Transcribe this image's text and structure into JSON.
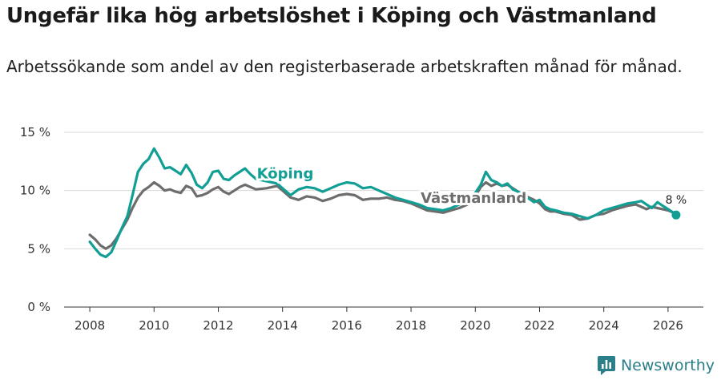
{
  "title": "Ungefär lika hög arbetslöshet i Köping och Västmanland",
  "subtitle": "Arbetssökande som andel av den registerbaserade arbetskraften månad för månad.",
  "brand": {
    "name": "Newsworthy",
    "icon": "newsworthy-logo-icon",
    "color": "#2a7f8a"
  },
  "chart_data": {
    "type": "line",
    "title": "Ungefär lika hög arbetslöshet i Köping och Västmanland",
    "xlabel": "",
    "ylabel": "",
    "xlim": [
      2007.2,
      2027.1
    ],
    "ylim": [
      0,
      15
    ],
    "y_ticks": [
      0,
      5,
      10,
      15
    ],
    "y_tick_labels": [
      "0 %",
      "5 %",
      "10 %",
      "15 %"
    ],
    "x_ticks": [
      2008,
      2010,
      2012,
      2014,
      2016,
      2018,
      2020,
      2022,
      2024,
      2026
    ],
    "x_tick_labels": [
      "2008",
      "2010",
      "2012",
      "2014",
      "2016",
      "2018",
      "2020",
      "2022",
      "2024",
      "2026"
    ],
    "grid": true,
    "end_label": "8 %",
    "series": [
      {
        "name": "Köping",
        "color": "#119e95",
        "x": [
          2008.0,
          2008.17,
          2008.33,
          2008.5,
          2008.67,
          2008.83,
          2009.0,
          2009.17,
          2009.33,
          2009.5,
          2009.67,
          2009.83,
          2010.0,
          2010.17,
          2010.33,
          2010.5,
          2010.67,
          2010.83,
          2011.0,
          2011.17,
          2011.33,
          2011.5,
          2011.67,
          2011.83,
          2012.0,
          2012.17,
          2012.33,
          2012.5,
          2012.67,
          2012.83,
          2013.0,
          2013.17,
          2013.5,
          2013.83,
          2014.0,
          2014.25,
          2014.5,
          2014.75,
          2015.0,
          2015.25,
          2015.5,
          2015.75,
          2016.0,
          2016.25,
          2016.5,
          2016.75,
          2017.0,
          2017.25,
          2017.5,
          2017.75,
          2018.0,
          2018.25,
          2018.5,
          2018.75,
          2019.0,
          2019.25,
          2019.5,
          2019.75,
          2020.0,
          2020.17,
          2020.33,
          2020.5,
          2020.67,
          2020.83,
          2021.0,
          2021.17,
          2021.33,
          2021.5,
          2021.67,
          2021.83,
          2022.0,
          2022.17,
          2022.33,
          2022.5,
          2022.75,
          2023.0,
          2023.25,
          2023.5,
          2023.75,
          2024.0,
          2024.25,
          2024.5,
          2024.75,
          2025.0,
          2025.17,
          2025.33,
          2025.5,
          2025.67,
          2025.83,
          2026.0,
          2026.17,
          2026.25
        ],
        "values": [
          5.6,
          5.0,
          4.5,
          4.3,
          4.7,
          5.7,
          6.8,
          7.8,
          9.6,
          11.6,
          12.3,
          12.7,
          13.6,
          12.8,
          11.9,
          12.0,
          11.7,
          11.4,
          12.2,
          11.5,
          10.5,
          10.2,
          10.7,
          11.6,
          11.7,
          11.0,
          10.9,
          11.3,
          11.6,
          11.9,
          11.4,
          11.0,
          10.8,
          10.6,
          10.2,
          9.6,
          10.1,
          10.3,
          10.2,
          9.9,
          10.2,
          10.5,
          10.7,
          10.6,
          10.2,
          10.3,
          10.0,
          9.7,
          9.4,
          9.2,
          9.0,
          8.8,
          8.5,
          8.4,
          8.3,
          8.5,
          8.8,
          9.2,
          9.8,
          10.5,
          11.6,
          10.9,
          10.7,
          10.4,
          10.6,
          10.1,
          9.9,
          9.6,
          9.3,
          9.0,
          9.2,
          8.6,
          8.4,
          8.3,
          8.1,
          8.0,
          7.8,
          7.6,
          7.9,
          8.3,
          8.5,
          8.7,
          8.9,
          9.0,
          9.1,
          8.8,
          8.5,
          9.0,
          8.7,
          8.4,
          8.1,
          7.9
        ]
      },
      {
        "name": "Västmanland",
        "color": "#6d6d6d",
        "x": [
          2008.0,
          2008.17,
          2008.33,
          2008.5,
          2008.67,
          2008.83,
          2009.0,
          2009.17,
          2009.33,
          2009.5,
          2009.67,
          2009.83,
          2010.0,
          2010.17,
          2010.33,
          2010.5,
          2010.67,
          2010.83,
          2011.0,
          2011.17,
          2011.33,
          2011.5,
          2011.67,
          2011.83,
          2012.0,
          2012.17,
          2012.33,
          2012.5,
          2012.67,
          2012.83,
          2013.0,
          2013.17,
          2013.5,
          2013.83,
          2014.0,
          2014.25,
          2014.5,
          2014.75,
          2015.0,
          2015.25,
          2015.5,
          2015.75,
          2016.0,
          2016.25,
          2016.5,
          2016.75,
          2017.0,
          2017.25,
          2017.5,
          2017.75,
          2018.0,
          2018.25,
          2018.5,
          2018.75,
          2019.0,
          2019.25,
          2019.5,
          2019.75,
          2020.0,
          2020.17,
          2020.33,
          2020.5,
          2020.67,
          2020.83,
          2021.0,
          2021.17,
          2021.33,
          2021.5,
          2021.67,
          2021.83,
          2022.0,
          2022.17,
          2022.33,
          2022.5,
          2022.75,
          2023.0,
          2023.25,
          2023.5,
          2023.75,
          2024.0,
          2024.25,
          2024.5,
          2024.75,
          2025.0,
          2025.17,
          2025.33,
          2025.5,
          2025.67,
          2025.83,
          2026.0,
          2026.17,
          2026.25
        ],
        "values": [
          6.2,
          5.8,
          5.3,
          5.0,
          5.3,
          5.9,
          6.7,
          7.5,
          8.5,
          9.4,
          10.0,
          10.3,
          10.7,
          10.4,
          10.0,
          10.1,
          9.9,
          9.8,
          10.4,
          10.2,
          9.5,
          9.6,
          9.8,
          10.1,
          10.3,
          9.9,
          9.7,
          10.0,
          10.3,
          10.5,
          10.3,
          10.1,
          10.2,
          10.4,
          10.0,
          9.4,
          9.2,
          9.5,
          9.4,
          9.1,
          9.3,
          9.6,
          9.7,
          9.6,
          9.2,
          9.3,
          9.3,
          9.4,
          9.2,
          9.1,
          8.9,
          8.6,
          8.3,
          8.2,
          8.1,
          8.3,
          8.5,
          8.8,
          9.5,
          10.3,
          10.7,
          10.4,
          10.6,
          10.4,
          10.5,
          10.2,
          9.9,
          9.6,
          9.4,
          9.2,
          8.9,
          8.4,
          8.2,
          8.2,
          8.0,
          7.9,
          7.5,
          7.6,
          7.9,
          8.0,
          8.3,
          8.5,
          8.7,
          8.8,
          8.6,
          8.4,
          8.6,
          8.5,
          8.4,
          8.3,
          8.1,
          8.1
        ]
      }
    ]
  }
}
